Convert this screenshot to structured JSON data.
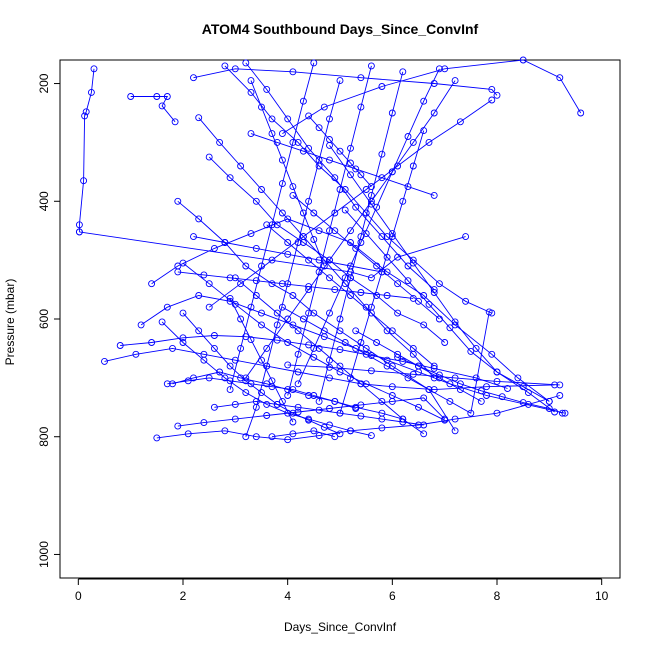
{
  "chart_data": {
    "type": "line",
    "title": "ATOM4 Southbound Days_Since_ConvInf",
    "xlabel": "Days_Since_ConvInf",
    "ylabel": "Pressure (mbar)",
    "xlim": [
      -0.35,
      10.35
    ],
    "ylim": [
      160,
      1040
    ],
    "y_reversed": true,
    "x_ticks": [
      0,
      2,
      4,
      6,
      8,
      10
    ],
    "y_ticks": [
      200,
      400,
      600,
      800,
      1000
    ],
    "grid": false,
    "series_color": "#0000ff",
    "series": [
      {
        "x": [
          0.3,
          0.25,
          0.15,
          0.12,
          0.1,
          0.02,
          0.02
        ],
        "y": [
          175,
          215,
          248,
          255,
          365,
          440,
          452
        ]
      },
      {
        "x": [
          0.02,
          5.2,
          5.6,
          6.1,
          7.4
        ],
        "y": [
          452,
          520,
          530,
          495,
          460
        ]
      },
      {
        "x": [
          1.0,
          1.5,
          1.7,
          1.6,
          1.85
        ],
        "y": [
          222,
          222,
          222,
          238,
          265
        ]
      },
      {
        "x": [
          2.2,
          3.0,
          4.1,
          5.4,
          6.8,
          7.9,
          8.0
        ],
        "y": [
          190,
          175,
          180,
          190,
          200,
          210,
          220
        ]
      },
      {
        "x": [
          9.6,
          9.2,
          8.5,
          7.0,
          5.8,
          4.7,
          3.9
        ],
        "y": [
          250,
          190,
          160,
          175,
          205,
          240,
          285
        ]
      },
      {
        "x": [
          1.4,
          1.9,
          2.6,
          3.3,
          4.0,
          4.6,
          5.2,
          5.9,
          6.6,
          7.2,
          7.9,
          8.4,
          9.0
        ],
        "y": [
          540,
          510,
          480,
          455,
          430,
          450,
          470,
          520,
          560,
          610,
          660,
          700,
          740
        ]
      },
      {
        "x": [
          1.2,
          1.7,
          2.3,
          2.9,
          3.5,
          4.1,
          4.7,
          5.3,
          5.9,
          6.5,
          7.1,
          7.8,
          9.3
        ],
        "y": [
          610,
          580,
          560,
          570,
          590,
          610,
          630,
          650,
          670,
          690,
          710,
          730,
          760
        ]
      },
      {
        "x": [
          0.5,
          1.1,
          1.8,
          2.4,
          3.0,
          3.6,
          4.2,
          4.8,
          5.4,
          6.0,
          6.8,
          7.8,
          9.1
        ],
        "y": [
          672,
          660,
          650,
          660,
          670,
          680,
          690,
          700,
          710,
          715,
          720,
          715,
          712
        ]
      },
      {
        "x": [
          1.5,
          2.1,
          2.8,
          3.4,
          4.0,
          4.6,
          5.2,
          5.8,
          6.5,
          7.2,
          8.0,
          8.6,
          9.2
        ],
        "y": [
          802,
          795,
          790,
          800,
          805,
          798,
          790,
          785,
          780,
          770,
          760,
          745,
          730
        ]
      },
      {
        "x": [
          1.8,
          2.2,
          2.7,
          3.1,
          3.6,
          4.0,
          4.4,
          4.9,
          5.3,
          5.8,
          6.2
        ],
        "y": [
          710,
          700,
          690,
          700,
          710,
          720,
          730,
          740,
          750,
          760,
          770
        ]
      },
      {
        "x": [
          1.9,
          2.3,
          2.8,
          3.2,
          3.7,
          4.1,
          4.5,
          5.0,
          5.5,
          6.0,
          6.7,
          7.2
        ],
        "y": [
          400,
          430,
          470,
          510,
          540,
          560,
          590,
          620,
          650,
          680,
          720,
          790
        ]
      },
      {
        "x": [
          2.5,
          2.9,
          3.4,
          3.8,
          4.3,
          4.8,
          5.2,
          5.7,
          6.1,
          6.6,
          7.0
        ],
        "y": [
          325,
          360,
          400,
          440,
          470,
          500,
          530,
          560,
          590,
          610,
          640
        ]
      },
      {
        "x": [
          2.8,
          3.3,
          3.7,
          4.2,
          4.6,
          5.1,
          5.5,
          5.9,
          6.4,
          6.9,
          7.4,
          7.9
        ],
        "y": [
          170,
          215,
          260,
          300,
          340,
          380,
          420,
          460,
          500,
          540,
          570,
          590
        ]
      },
      {
        "x": [
          3.2,
          3.6,
          4.0,
          4.4,
          4.9,
          5.3,
          5.8,
          6.3,
          6.8
        ],
        "y": [
          165,
          210,
          260,
          310,
          360,
          410,
          460,
          510,
          550
        ]
      },
      {
        "x": [
          4.5,
          4.3,
          4.1,
          3.9,
          3.7,
          3.5,
          3.3,
          3.1,
          2.9
        ],
        "y": [
          165,
          230,
          300,
          370,
          440,
          510,
          580,
          650,
          720
        ]
      },
      {
        "x": [
          5.0,
          4.8,
          4.6,
          4.4,
          4.2,
          4.0,
          3.8,
          3.6,
          3.4,
          3.2
        ],
        "y": [
          195,
          260,
          330,
          400,
          470,
          540,
          610,
          680,
          750,
          800
        ]
      },
      {
        "x": [
          5.6,
          5.4,
          5.2,
          5.0,
          4.8,
          4.6,
          4.4,
          4.2,
          4.0
        ],
        "y": [
          170,
          240,
          310,
          380,
          450,
          520,
          590,
          660,
          730
        ]
      },
      {
        "x": [
          6.2,
          6.0,
          5.8,
          5.6,
          5.4,
          5.2,
          5.0,
          4.8,
          4.6
        ],
        "y": [
          180,
          250,
          320,
          390,
          460,
          530,
          600,
          670,
          740
        ]
      },
      {
        "x": [
          6.9,
          6.6,
          6.3,
          6.0,
          5.7,
          5.4,
          5.1,
          4.8,
          4.5,
          4.2
        ],
        "y": [
          175,
          230,
          290,
          350,
          410,
          470,
          530,
          590,
          650,
          710
        ]
      },
      {
        "x": [
          7.2,
          6.8,
          6.4,
          6.0,
          5.6,
          5.2,
          4.8,
          4.4,
          4.0,
          3.6,
          3.2
        ],
        "y": [
          195,
          250,
          300,
          350,
          400,
          450,
          500,
          550,
          600,
          650,
          700
        ]
      },
      {
        "x": [
          7.9,
          7.3,
          6.7,
          6.1,
          5.5,
          4.9,
          4.3,
          3.7,
          3.1,
          2.5
        ],
        "y": [
          228,
          265,
          300,
          340,
          380,
          420,
          460,
          500,
          540,
          580
        ]
      },
      {
        "x": [
          2.3,
          2.7,
          3.1,
          3.5,
          3.9,
          4.3,
          4.7,
          5.1,
          5.5,
          5.9,
          6.4,
          6.8
        ],
        "y": [
          258,
          300,
          340,
          380,
          420,
          460,
          500,
          540,
          580,
          620,
          660,
          700
        ]
      },
      {
        "x": [
          1.6,
          2.0,
          2.4,
          2.8,
          3.2,
          3.6,
          4.0,
          4.4,
          4.8,
          5.2,
          5.6
        ],
        "y": [
          605,
          640,
          670,
          700,
          725,
          745,
          760,
          770,
          780,
          790,
          798
        ]
      },
      {
        "x": [
          2.0,
          2.5,
          3.0,
          3.5,
          4.0,
          4.5,
          5.0,
          5.5,
          6.0,
          6.5,
          7.0
        ],
        "y": [
          505,
          540,
          575,
          610,
          640,
          665,
          690,
          710,
          730,
          750,
          772
        ]
      },
      {
        "x": [
          3.0,
          3.4,
          3.8,
          4.2,
          4.6,
          5.0,
          5.4,
          5.8,
          6.2,
          6.6
        ],
        "y": [
          530,
          560,
          590,
          620,
          650,
          680,
          710,
          740,
          770,
          795
        ]
      },
      {
        "x": [
          3.6,
          4.0,
          4.4,
          4.8,
          5.2,
          5.6,
          6.0,
          6.4,
          6.8
        ],
        "y": [
          440,
          470,
          500,
          530,
          560,
          590,
          620,
          650,
          680
        ]
      },
      {
        "x": [
          4.1,
          4.5,
          4.9,
          5.3,
          5.7,
          6.1,
          6.5,
          6.9
        ],
        "y": [
          390,
          420,
          450,
          480,
          510,
          540,
          570,
          600
        ]
      },
      {
        "x": [
          0.8,
          1.4,
          2.0,
          2.6,
          3.2,
          3.8,
          4.4,
          5.0,
          5.6,
          6.2,
          6.8,
          7.6,
          8.2
        ],
        "y": [
          645,
          640,
          632,
          628,
          630,
          636,
          644,
          652,
          662,
          672,
          684,
          700,
          718
        ]
      },
      {
        "x": [
          1.7,
          2.1,
          2.5,
          2.9,
          3.3,
          3.7,
          4.1,
          4.5,
          4.9,
          5.3
        ],
        "y": [
          710,
          705,
          700,
          705,
          710,
          715,
          720,
          730,
          740,
          752
        ]
      },
      {
        "x": [
          2.6,
          3.0,
          3.4,
          3.8,
          4.2,
          4.6,
          5.0,
          5.4,
          5.8,
          6.2,
          6.6
        ],
        "y": [
          750,
          745,
          740,
          745,
          750,
          755,
          760,
          765,
          770,
          775,
          780
        ]
      },
      {
        "x": [
          3.7,
          4.1,
          4.5,
          4.9
        ],
        "y": [
          800,
          795,
          790,
          800
        ]
      },
      {
        "x": [
          4.8,
          5.2,
          5.6,
          6.0,
          6.4,
          6.8,
          7.2,
          7.6,
          8.0,
          8.6,
          9.1
        ],
        "y": [
          305,
          355,
          405,
          455,
          505,
          555,
          605,
          650,
          690,
          725,
          758
        ]
      },
      {
        "x": [
          5.1,
          5.5,
          5.9,
          6.3,
          6.7,
          7.1,
          7.5,
          8.0,
          8.5,
          9.0
        ],
        "y": [
          415,
          455,
          495,
          535,
          575,
          615,
          655,
          690,
          715,
          740
        ]
      },
      {
        "x": [
          6.6,
          6.4,
          6.2,
          6.0,
          5.8,
          5.6,
          5.4,
          5.2,
          5.0
        ],
        "y": [
          280,
          340,
          400,
          460,
          520,
          580,
          640,
          700,
          760
        ]
      },
      {
        "x": [
          3.9,
          4.3,
          4.7,
          5.1,
          5.5,
          5.9,
          6.3,
          6.7,
          7.1,
          7.5,
          7.85
        ],
        "y": [
          580,
          600,
          620,
          640,
          660,
          680,
          700,
          720,
          740,
          760,
          588
        ]
      },
      {
        "x": [
          1.9,
          2.4,
          2.9,
          3.4,
          3.9,
          4.4,
          4.9,
          5.4,
          5.9,
          6.4
        ],
        "y": [
          520,
          525,
          530,
          535,
          540,
          545,
          550,
          555,
          560,
          565
        ]
      },
      {
        "x": [
          2.2,
          2.8,
          3.4,
          4.0,
          4.6,
          5.2,
          5.8
        ],
        "y": [
          460,
          470,
          480,
          490,
          500,
          510,
          520
        ]
      },
      {
        "x": [
          3.3,
          3.8,
          4.3,
          4.8,
          5.3,
          5.8,
          6.3,
          6.8
        ],
        "y": [
          285,
          300,
          315,
          330,
          345,
          360,
          375,
          390
        ]
      },
      {
        "x": [
          4.4,
          4.6,
          4.8,
          5.0,
          5.2,
          5.4,
          5.6
        ],
        "y": [
          255,
          275,
          295,
          315,
          335,
          355,
          375
        ]
      },
      {
        "x": [
          3.3,
          3.5,
          3.7,
          3.9,
          4.1,
          4.3,
          4.5,
          4.7
        ],
        "y": [
          195,
          240,
          285,
          330,
          375,
          420,
          465,
          510
        ]
      },
      {
        "x": [
          2.9,
          3.1,
          3.3,
          3.5,
          3.7,
          3.9,
          4.1
        ],
        "y": [
          565,
          600,
          635,
          670,
          705,
          740,
          775
        ]
      },
      {
        "x": [
          2.0,
          2.3,
          2.6,
          2.9,
          3.2,
          3.5,
          3.8,
          4.1,
          4.4,
          4.7,
          5.0
        ],
        "y": [
          590,
          620,
          650,
          680,
          705,
          725,
          745,
          760,
          772,
          784,
          795
        ]
      },
      {
        "x": [
          6.1,
          6.5,
          6.9,
          7.3,
          7.7,
          8.1,
          8.5,
          9.0,
          9.25
        ],
        "y": [
          665,
          680,
          695,
          710,
          722,
          732,
          742,
          752,
          760
        ]
      },
      {
        "x": [
          4.0,
          4.8,
          5.6,
          6.4,
          7.2,
          8.0,
          9.2
        ],
        "y": [
          678,
          682,
          688,
          694,
          700,
          706,
          712
        ]
      },
      {
        "x": [
          5.3,
          5.7,
          6.1,
          6.5,
          6.9,
          7.3,
          7.7
        ],
        "y": [
          620,
          640,
          660,
          680,
          700,
          720,
          740
        ]
      },
      {
        "x": [
          1.9,
          2.4,
          3.0,
          3.6,
          4.2,
          4.8,
          5.4,
          6.0,
          6.6,
          7.0
        ],
        "y": [
          782,
          776,
          770,
          764,
          758,
          752,
          746,
          740,
          734,
          770
        ]
      }
    ]
  }
}
